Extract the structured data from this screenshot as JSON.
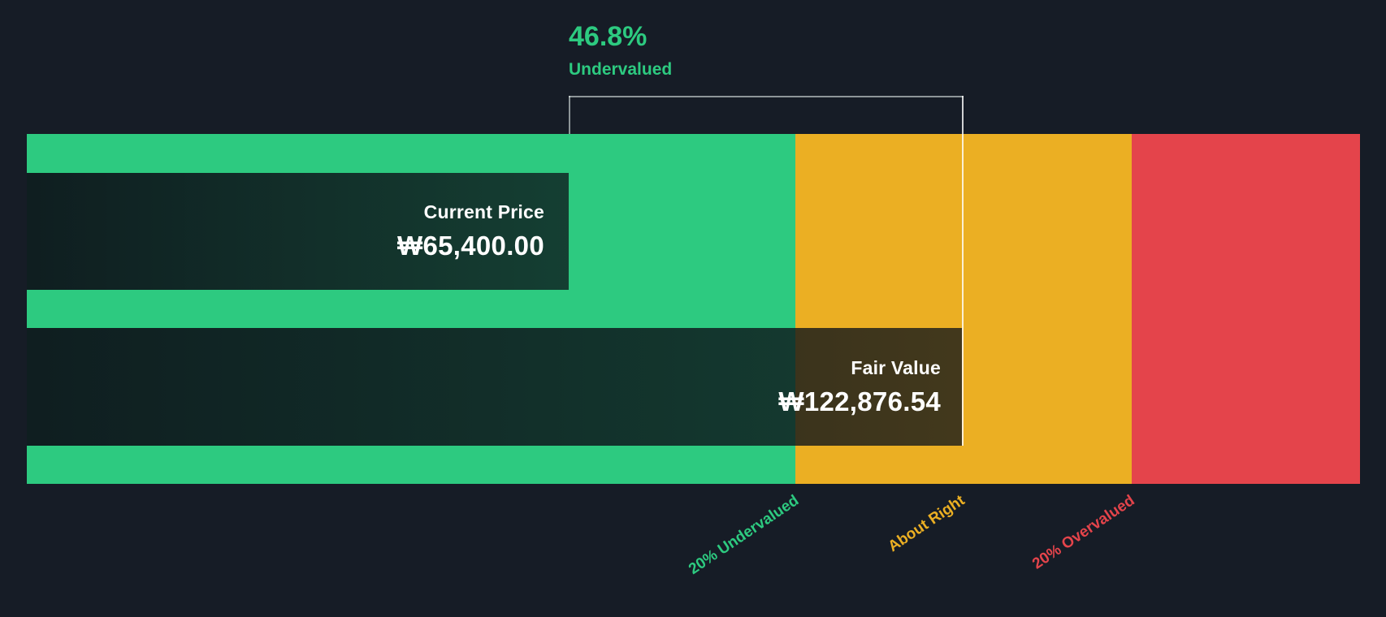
{
  "chart_data": {
    "type": "bar",
    "title": "",
    "orientation": "horizontal",
    "discount": {
      "percent": "46.8%",
      "status": "Undervalued",
      "numeric_percent": 46.8
    },
    "bars": [
      {
        "name": "Current Price",
        "display_value": "₩65,400.00",
        "value": 65400,
        "currency": "KRW"
      },
      {
        "name": "Fair Value",
        "display_value": "₩122,876.54",
        "value": 122876.54,
        "currency": "KRW"
      }
    ],
    "zones": [
      {
        "label": "20% Undervalued",
        "color": "#2DCA80"
      },
      {
        "label": "About Right",
        "color": "#EBAF23"
      },
      {
        "label": "20% Overvalued",
        "color": "#E4444B"
      }
    ],
    "grid": false,
    "legend_position": "bottom-rotated"
  },
  "colors": {
    "background": "#161C26",
    "undervalued_green": "#2DCA80",
    "about_right_amber": "#EBAF23",
    "overvalued_red": "#E4444B",
    "bar_overlay_dark": "rgba(13,19,26,0.85)",
    "marker_line": "rgba(255,255,255,0.8)",
    "text_white": "#FFFFFF"
  }
}
